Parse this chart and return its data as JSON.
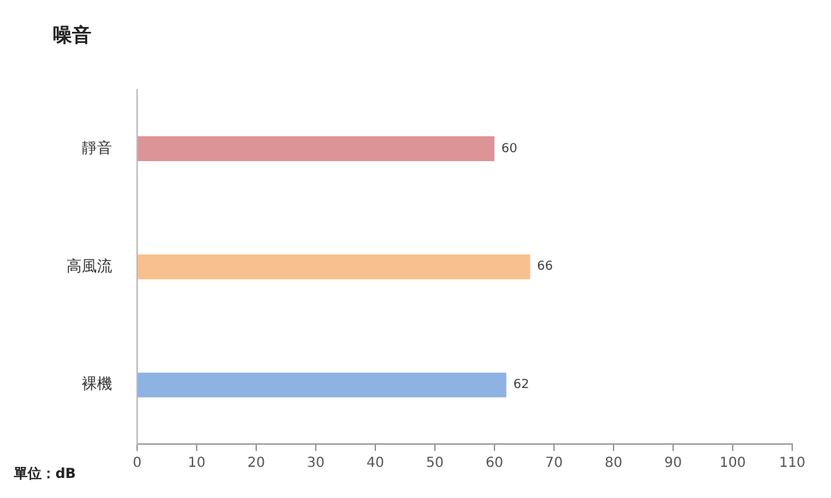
{
  "chart_data": {
    "type": "bar",
    "orientation": "horizontal",
    "title": "噪音",
    "categories": [
      "靜音",
      "高風流",
      "裸機"
    ],
    "values": [
      60,
      66,
      62
    ],
    "colors": [
      "#dc9497",
      "#f9c08f",
      "#8eb3e2"
    ],
    "xlim": [
      0,
      110
    ],
    "xticks": [
      0,
      10,
      20,
      30,
      40,
      50,
      60,
      70,
      80,
      90,
      100,
      110
    ],
    "grid": false,
    "legend": false,
    "data_labels": true,
    "annotations": [
      "單位：dB"
    ]
  }
}
